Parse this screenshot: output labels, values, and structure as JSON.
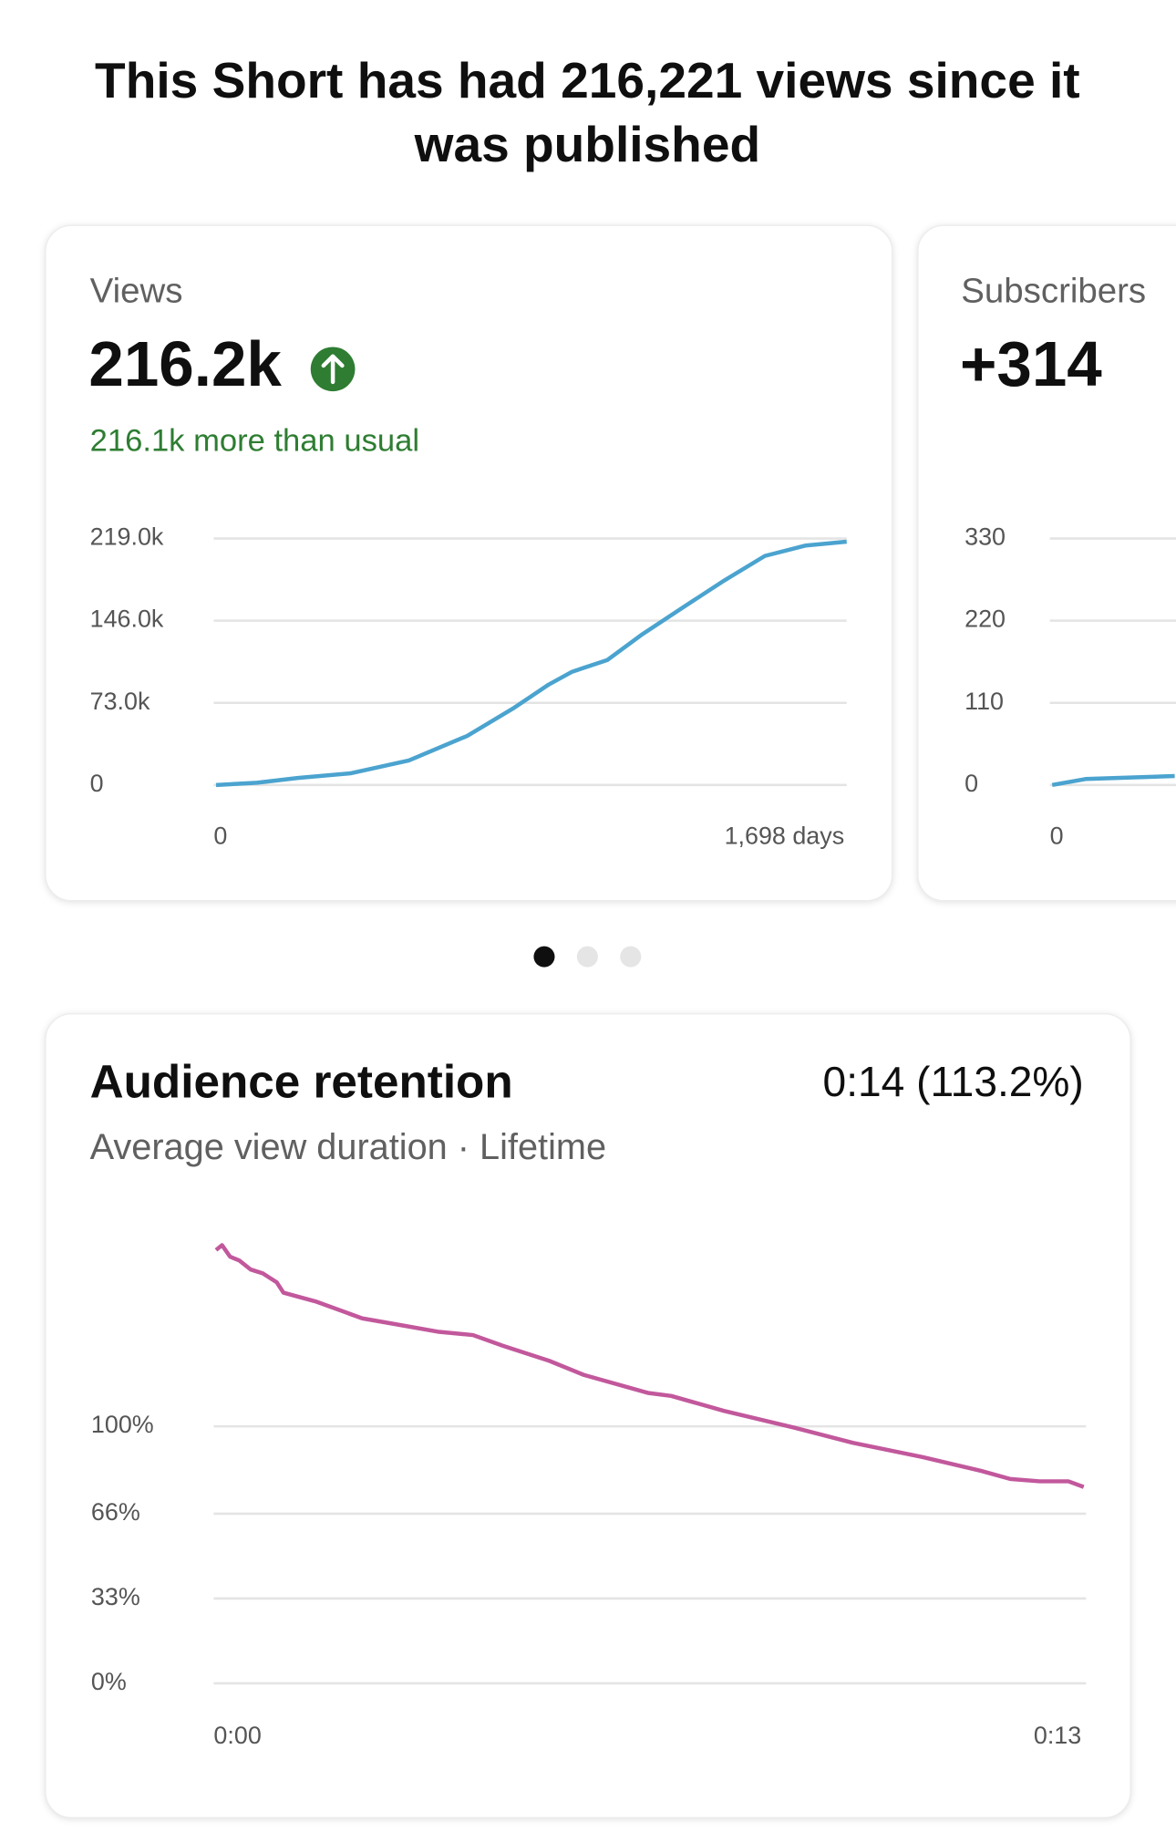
{
  "header": {
    "title_line1": "This Short has had 216,221 views since it",
    "title_line2": "was published"
  },
  "views_card": {
    "label": "Views",
    "value": "216.2k",
    "comparison": "216.1k more than usual",
    "chart": {
      "type": "line",
      "color": "#4ba3cf",
      "x": [
        0,
        110,
        220,
        362,
        519,
        676,
        802,
        896,
        959,
        1053,
        1148,
        1258,
        1368,
        1478,
        1588,
        1698
      ],
      "values": [
        0,
        2000,
        6200,
        10400,
        21800,
        43600,
        68500,
        89300,
        100700,
        111000,
        134000,
        158000,
        181600,
        203500,
        212800,
        216221
      ],
      "xlim": [
        0,
        1698
      ],
      "xticks": [
        0,
        {
          "value": 1698,
          "label": "1,698 days"
        }
      ],
      "ylim": [
        0,
        219000
      ],
      "yticks": [
        0,
        {
          "value": 73000,
          "label": "73.0k"
        },
        {
          "value": 146000,
          "label": "146.0k"
        },
        {
          "value": 219000,
          "label": "219.0k"
        }
      ],
      "grid": true
    }
  },
  "subscribers_card": {
    "label": "Subscribers",
    "value": "+314",
    "chart": {
      "type": "line",
      "color": "#4ba3cf",
      "x": [
        0,
        90,
        330
      ],
      "values": [
        0,
        8,
        12
      ],
      "xlim": [
        0,
        1698
      ],
      "xticks": [
        0
      ],
      "ylim": [
        0,
        330
      ],
      "yticks": [
        0,
        110,
        220,
        330
      ],
      "grid": true
    }
  },
  "retention_card": {
    "title": "Audience retention",
    "summary": "0:14 (113.2%)",
    "subtitle": "Average view duration · Lifetime",
    "chart": {
      "type": "line",
      "color": "#c2589c",
      "x": [
        0,
        0.09,
        0.21,
        0.35,
        0.52,
        0.7,
        0.91,
        1.01,
        1.49,
        2.19,
        2.63,
        3.32,
        3.85,
        4.29,
        4.99,
        5.51,
        6.47,
        6.82,
        7.61,
        8.66,
        9.54,
        10.59,
        11.46,
        11.9,
        12.34,
        12.77,
        13
      ],
      "values": [
        168.6,
        170.5,
        166,
        164.5,
        161,
        159.5,
        156,
        152,
        148.6,
        142,
        140,
        136.8,
        135.5,
        131.4,
        125.5,
        120,
        113,
        111.8,
        106,
        99.5,
        93.6,
        88,
        82.7,
        79.5,
        78.6,
        78.6,
        76.4
      ],
      "xlim": [
        0,
        13
      ],
      "xticks": [
        {
          "value": 0,
          "label": "0:00"
        },
        {
          "value": 13,
          "label": "0:13"
        }
      ],
      "ylim": [
        0,
        175
      ],
      "yticks": [
        {
          "value": 0,
          "label": "0%"
        },
        {
          "value": 33,
          "label": "33%"
        },
        {
          "value": 66,
          "label": "66%"
        },
        {
          "value": 100,
          "label": "100%"
        }
      ],
      "grid": true
    }
  }
}
